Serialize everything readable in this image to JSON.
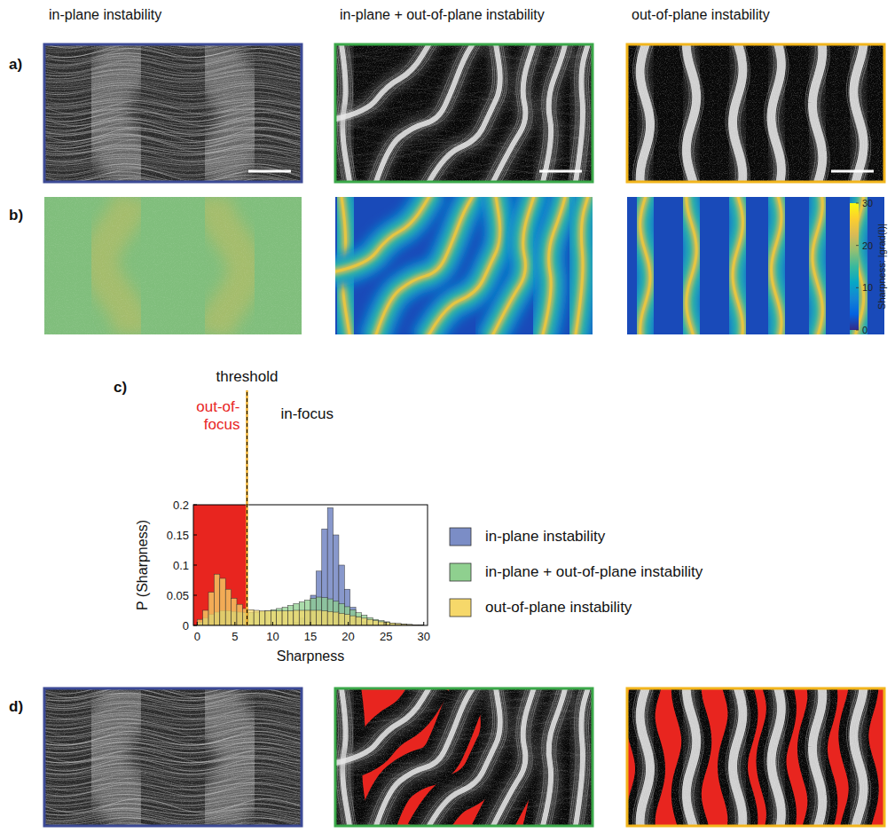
{
  "columns": [
    "in-plane instability",
    "in-plane + out-of-plane instability",
    "out-of-plane instability"
  ],
  "panel_labels": [
    "a)",
    "b)",
    "c)",
    "d)"
  ],
  "colorbar": {
    "label": "Sharpness: |grad(I)|",
    "range": [
      0,
      30
    ],
    "ticks": [
      0,
      10,
      20,
      30
    ]
  },
  "chart_data": {
    "type": "histogram",
    "xlabel": "Sharpness",
    "ylabel": "P (Sharpness)",
    "bins": [
      0,
      0.75,
      1.5,
      2.25,
      3,
      3.75,
      4.5,
      5.25,
      6,
      6.75,
      7.5,
      8.25,
      9,
      9.75,
      10.5,
      11.25,
      12,
      12.75,
      13.5,
      14.25,
      15,
      15.75,
      16.5,
      17.25,
      18,
      18.75,
      19.5,
      20.25,
      21,
      21.75,
      22.5,
      23.25,
      24,
      24.75,
      25.5,
      26.25,
      27,
      27.75,
      28.5,
      29.25,
      30
    ],
    "series": [
      {
        "name": "in-plane instability",
        "color": "#7b8dc6",
        "values": [
          0,
          0,
          0,
          0,
          0,
          0,
          0,
          0,
          0,
          0,
          0,
          0,
          0,
          0,
          0,
          0,
          0.002,
          0.005,
          0.012,
          0.025,
          0.05,
          0.09,
          0.16,
          0.195,
          0.15,
          0.1,
          0.06,
          0.03,
          0.015,
          0.006,
          0.002,
          0,
          0,
          0,
          0,
          0,
          0,
          0,
          0,
          0
        ]
      },
      {
        "name": "in-plane + out-of-plane instability",
        "color": "#8fd08f",
        "values": [
          0.005,
          0.012,
          0.018,
          0.022,
          0.024,
          0.024,
          0.023,
          0.022,
          0.021,
          0.021,
          0.022,
          0.023,
          0.024,
          0.026,
          0.028,
          0.03,
          0.033,
          0.036,
          0.039,
          0.042,
          0.045,
          0.047,
          0.046,
          0.044,
          0.04,
          0.036,
          0.031,
          0.026,
          0.021,
          0.017,
          0.013,
          0.01,
          0.008,
          0.006,
          0.004,
          0.003,
          0.002,
          0.0015,
          0.001,
          0.0005
        ]
      },
      {
        "name": "out-of-plane instability",
        "color": "#f6d86a",
        "values": [
          0.01,
          0.025,
          0.055,
          0.085,
          0.078,
          0.06,
          0.045,
          0.035,
          0.028,
          0.026,
          0.025,
          0.024,
          0.024,
          0.024,
          0.024,
          0.024,
          0.024,
          0.025,
          0.025,
          0.025,
          0.025,
          0.025,
          0.024,
          0.023,
          0.022,
          0.02,
          0.018,
          0.016,
          0.014,
          0.012,
          0.01,
          0.008,
          0.006,
          0.005,
          0.004,
          0.003,
          0.002,
          0.0015,
          0.001,
          0.0005
        ]
      }
    ],
    "xlim": [
      -0.5,
      30.5
    ],
    "ylim": [
      0,
      0.2
    ],
    "xticks": [
      0,
      5,
      10,
      15,
      20,
      25,
      30
    ],
    "yticks": [
      0,
      0.05,
      0.1,
      0.15,
      0.2
    ],
    "legend": "right",
    "annotations": [
      {
        "text": "threshold",
        "x": 6.6
      },
      {
        "text": "out-of-focus",
        "color": "#e8251f"
      },
      {
        "text": "in-focus"
      }
    ]
  }
}
